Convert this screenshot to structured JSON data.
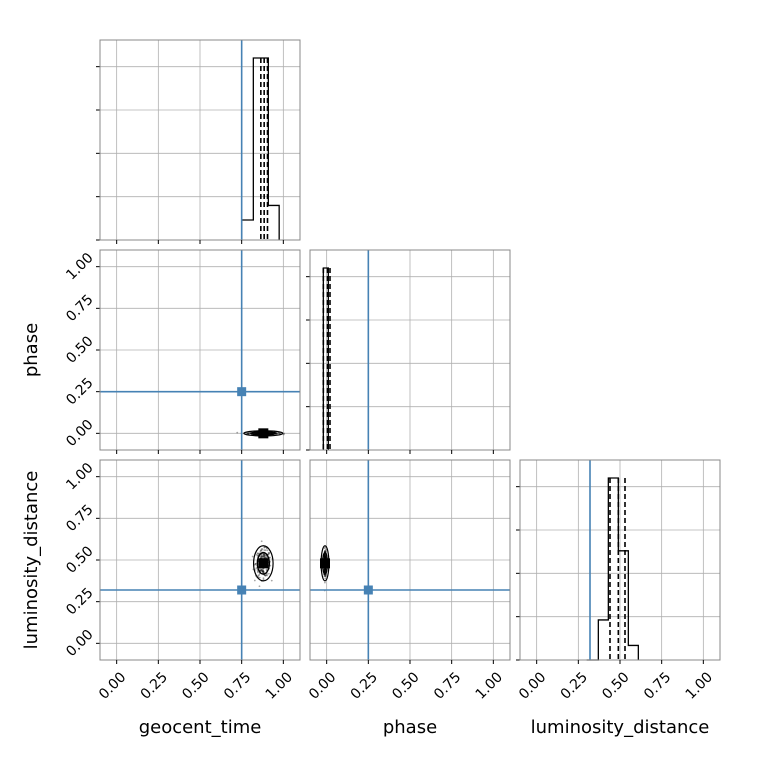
{
  "chart_data": {
    "type": "corner",
    "parameters": [
      "geocent_time",
      "phase",
      "luminosity_distance"
    ],
    "axis_labels": [
      "geocent_time",
      "phase",
      "luminosity_distance"
    ],
    "tick_labels": [
      "0.00",
      "0.25",
      "0.50",
      "0.75",
      "1.00"
    ],
    "tick_values": [
      0.0,
      0.25,
      0.5,
      0.75,
      1.0
    ],
    "xlim": [
      -0.1,
      1.1
    ],
    "ylim_2d": [
      -0.1,
      1.1
    ],
    "grid": true,
    "colors": {
      "truth": "#4682b4",
      "histogram": "#000000",
      "quantile": "#000000",
      "grid": "#b0b0b0",
      "frame": "#888888"
    },
    "truths": {
      "geocent_time": 0.75,
      "phase": 0.25,
      "luminosity_distance": 0.32
    },
    "histograms": [
      {
        "parameter": "geocent_time",
        "bin_edges": [
          0.75,
          0.82,
          0.91,
          0.975
        ],
        "counts": [
          0.11,
          1.0,
          0.19
        ],
        "quantiles": [
          0.865,
          0.885,
          0.905
        ]
      },
      {
        "parameter": "phase",
        "bin_edges": [
          -0.02,
          0.01
        ],
        "counts": [
          1.0
        ],
        "quantiles": [
          -0.02,
          0.005,
          0.02
        ]
      },
      {
        "parameter": "luminosity_distance",
        "bin_edges": [
          0.3,
          0.37,
          0.43,
          0.49,
          0.55,
          0.61
        ],
        "counts": [
          0.0,
          0.22,
          1.0,
          0.6,
          0.08
        ],
        "quantiles": [
          0.44,
          0.49,
          0.53
        ]
      }
    ],
    "scatter_2d": [
      {
        "x": "geocent_time",
        "y": "phase",
        "center": [
          0.88,
          0.0
        ],
        "spread": [
          0.1,
          0.008
        ]
      },
      {
        "x": "geocent_time",
        "y": "luminosity_distance",
        "center": [
          0.88,
          0.48
        ],
        "spread": [
          0.05,
          0.09
        ]
      },
      {
        "x": "phase",
        "y": "luminosity_distance",
        "center": [
          -0.01,
          0.48
        ],
        "spread": [
          0.006,
          0.09
        ]
      }
    ]
  }
}
